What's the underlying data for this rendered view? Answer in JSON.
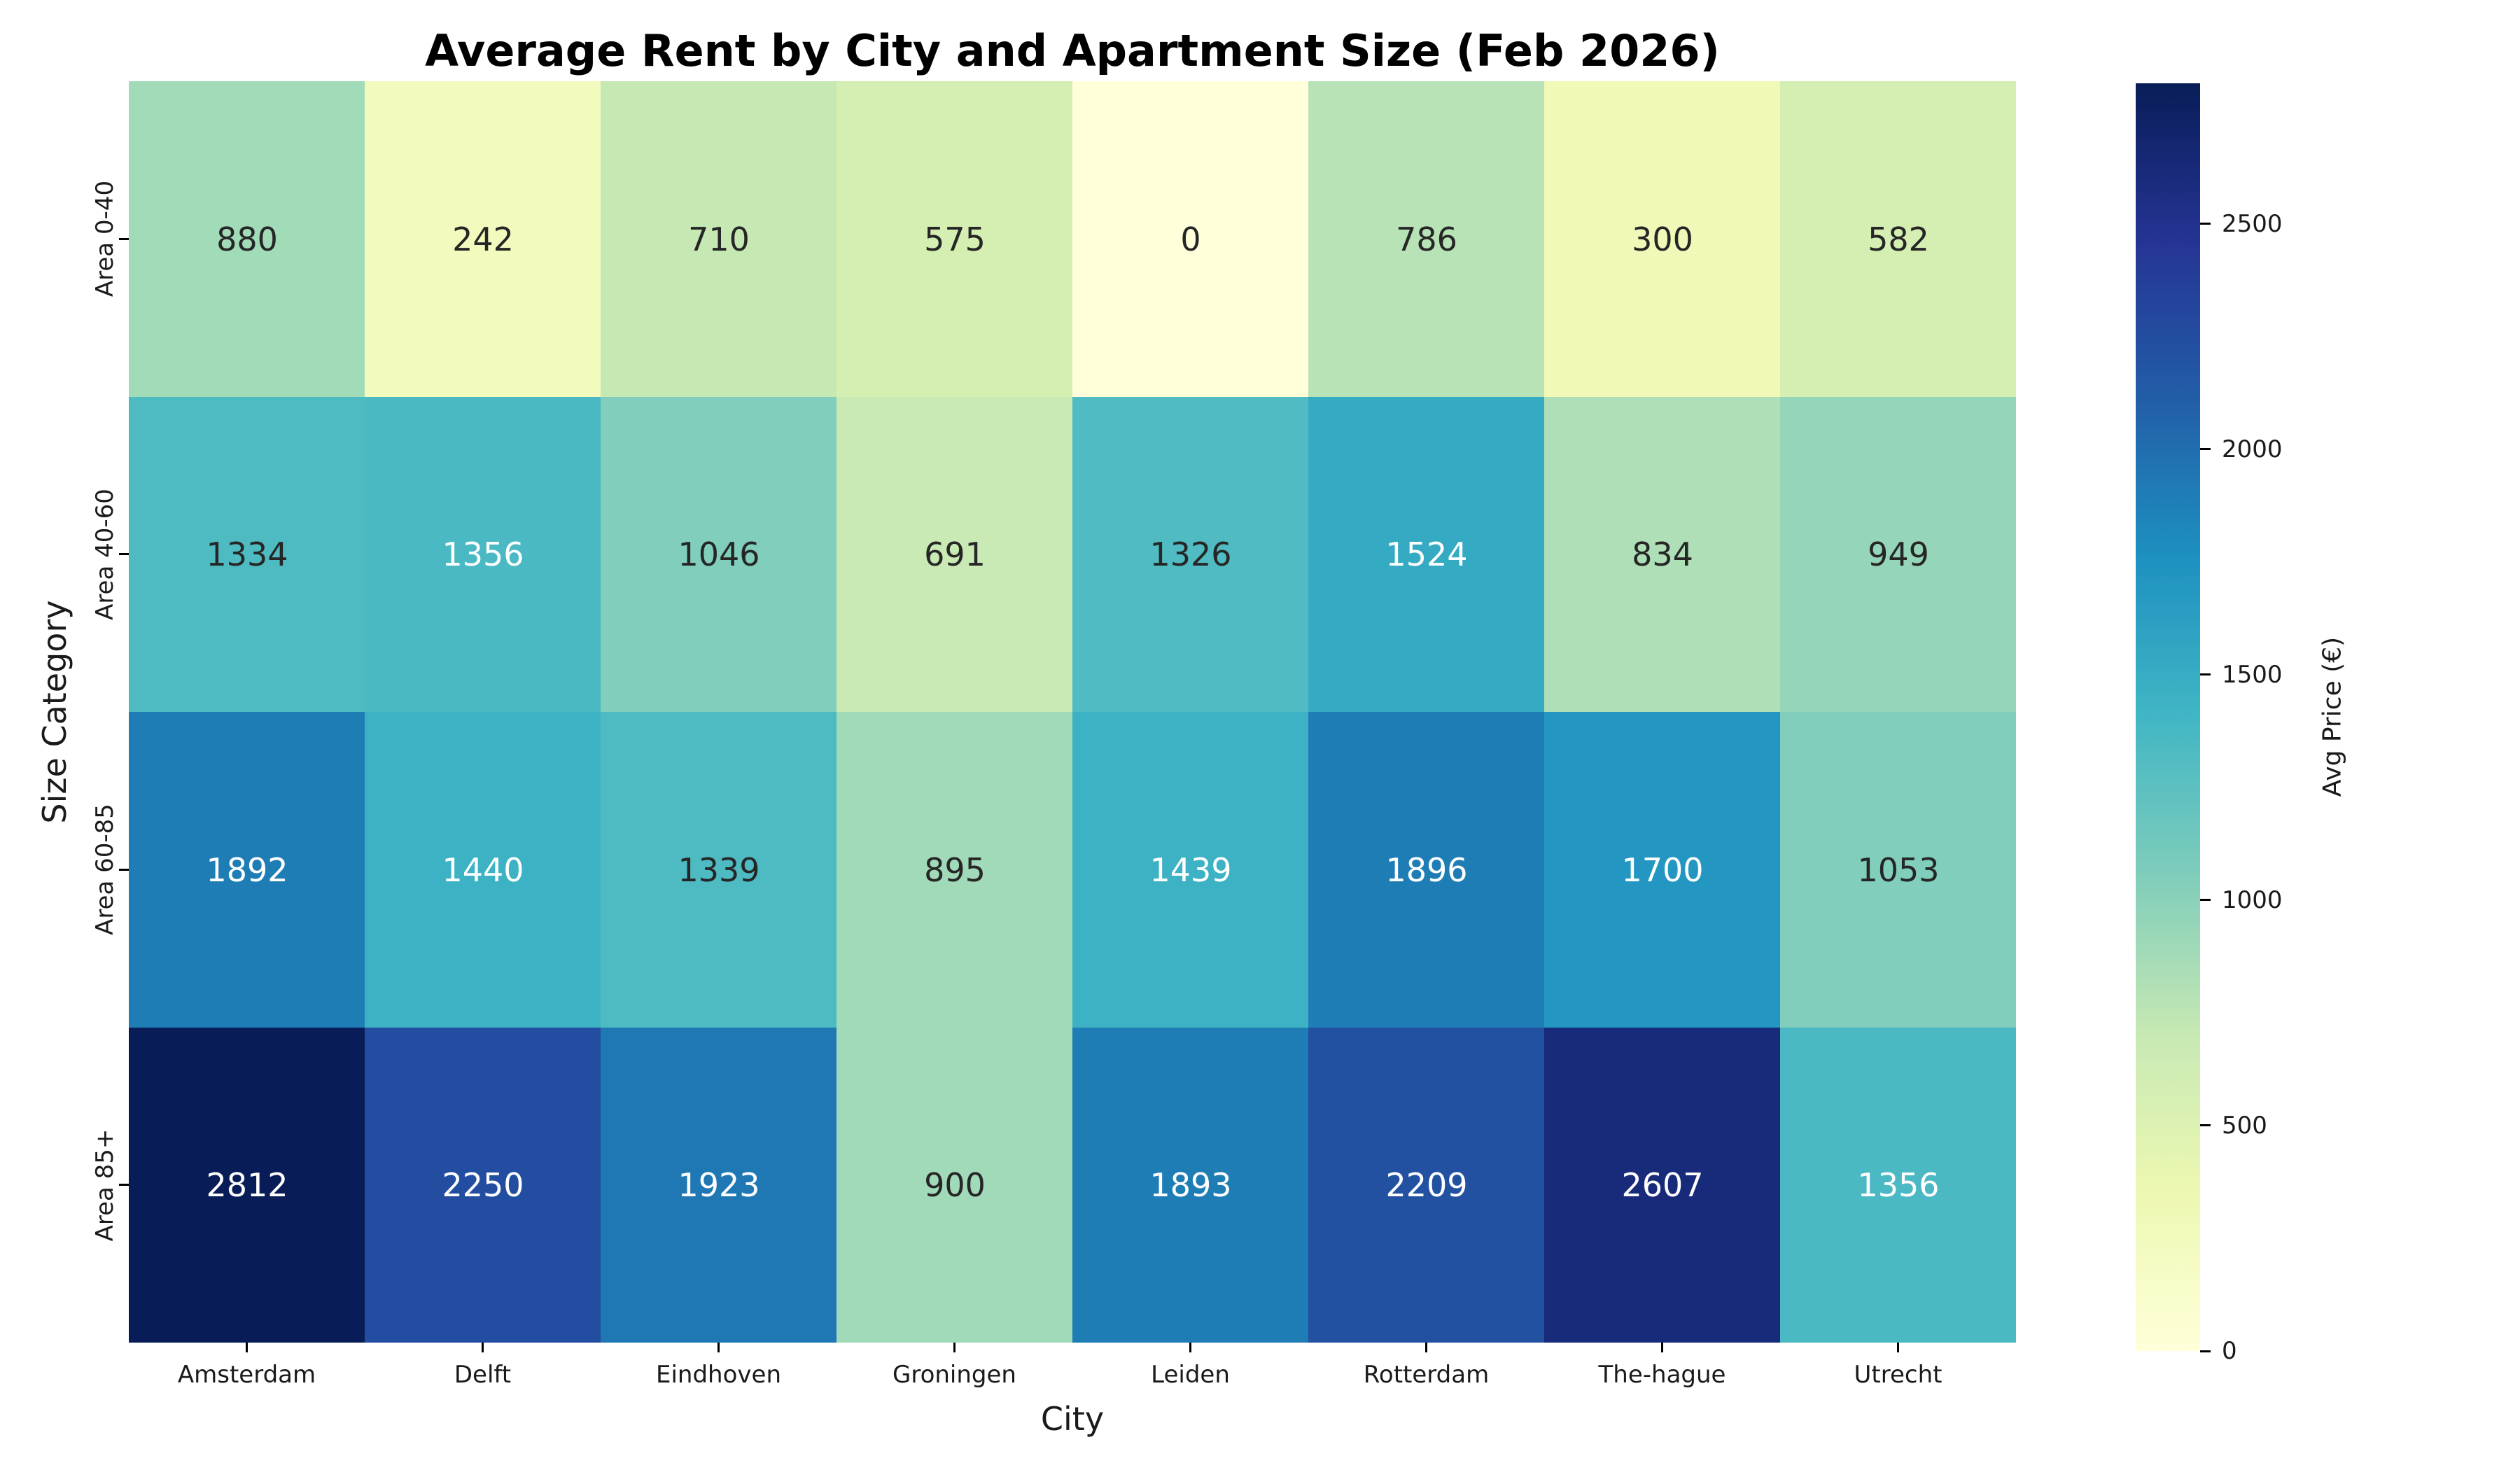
{
  "title": "Average Rent by City and Apartment Size (Feb 2026)",
  "chart_data": {
    "type": "heatmap",
    "title": "Average Rent by City and Apartment Size (Feb 2026)",
    "xlabel": "City",
    "ylabel": "Size Category",
    "x_categories": [
      "Amsterdam",
      "Delft",
      "Eindhoven",
      "Groningen",
      "Leiden",
      "Rotterdam",
      "The-hague",
      "Utrecht"
    ],
    "y_categories": [
      "Area 0-40",
      "Area 40-60",
      "Area 60-85",
      "Area 85+"
    ],
    "values": [
      [
        880,
        242,
        710,
        575,
        0,
        786,
        300,
        582
      ],
      [
        1334,
        1356,
        1046,
        691,
        1326,
        1524,
        834,
        949
      ],
      [
        1892,
        1440,
        1339,
        895,
        1439,
        1896,
        1700,
        1053
      ],
      [
        2812,
        2250,
        1923,
        900,
        1893,
        2209,
        2607,
        1356
      ]
    ],
    "vmin": 0,
    "vmax": 2812,
    "grid": false,
    "colormap": {
      "name": "YlGnBu",
      "stops": [
        "#ffffd9",
        "#edf8b1",
        "#c7e9b4",
        "#7fcdbb",
        "#41b6c4",
        "#1d91c0",
        "#225ea8",
        "#253494",
        "#081d58"
      ]
    },
    "annotation_colors": {
      "dark": "#262626",
      "light": "#ffffff"
    },
    "colorbar": {
      "label": "Avg Price (€)",
      "ticks": [
        0,
        500,
        1000,
        1500,
        2000,
        2500
      ],
      "position": "right"
    }
  }
}
